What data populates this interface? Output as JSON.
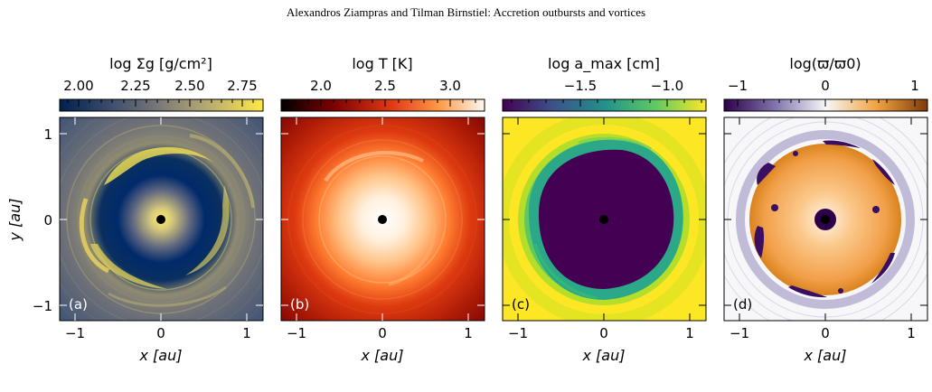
{
  "header": {
    "running_title": "Alexandros Ziampras and Tilman Birnstiel: Accretion outbursts and vortices"
  },
  "panels": [
    {
      "id": "a",
      "label": "(a)",
      "colorbar_title": "log Σg [g/cm²]",
      "colorbar_ticks": [
        "2.00",
        "2.25",
        "2.50",
        "2.75"
      ],
      "colormap": [
        "#00204c",
        "#3c4d6e",
        "#7c7b78",
        "#bcaf6f",
        "#ffe945"
      ],
      "xlabel": "x [au]",
      "ylabel": "y [au]",
      "xticks": [
        "−1",
        "0",
        "1"
      ],
      "yticks": [
        "1",
        "0",
        "−1"
      ]
    },
    {
      "id": "b",
      "label": "(b)",
      "colorbar_title": "log T [K]",
      "colorbar_ticks": [
        "2.0",
        "2.5",
        "3.0"
      ],
      "colormap": [
        "#000000",
        "#7a0000",
        "#e23b14",
        "#ff9b4a",
        "#fff8f0"
      ],
      "xlabel": "x [au]",
      "xticks": [
        "−1",
        "0",
        "1"
      ]
    },
    {
      "id": "c",
      "label": "(c)",
      "colorbar_title": "log a_max [cm]",
      "colorbar_ticks": [
        "−1.5",
        "−1.0"
      ],
      "colormap": [
        "#440154",
        "#3b528b",
        "#21918c",
        "#5ec962",
        "#fde725"
      ],
      "xlabel": "x [au]",
      "xticks": [
        "−1",
        "0",
        "1"
      ]
    },
    {
      "id": "d",
      "label": "(d)",
      "colorbar_title": "log(ϖ/ϖ0)",
      "colorbar_ticks": [
        "−1",
        "0",
        "1"
      ],
      "colormap": [
        "#2d004b",
        "#8073ac",
        "#f7f7f7",
        "#f1a340",
        "#7f3b08"
      ],
      "xlabel": "x [au]",
      "xticks": [
        "−1",
        "0",
        "1"
      ]
    }
  ]
}
